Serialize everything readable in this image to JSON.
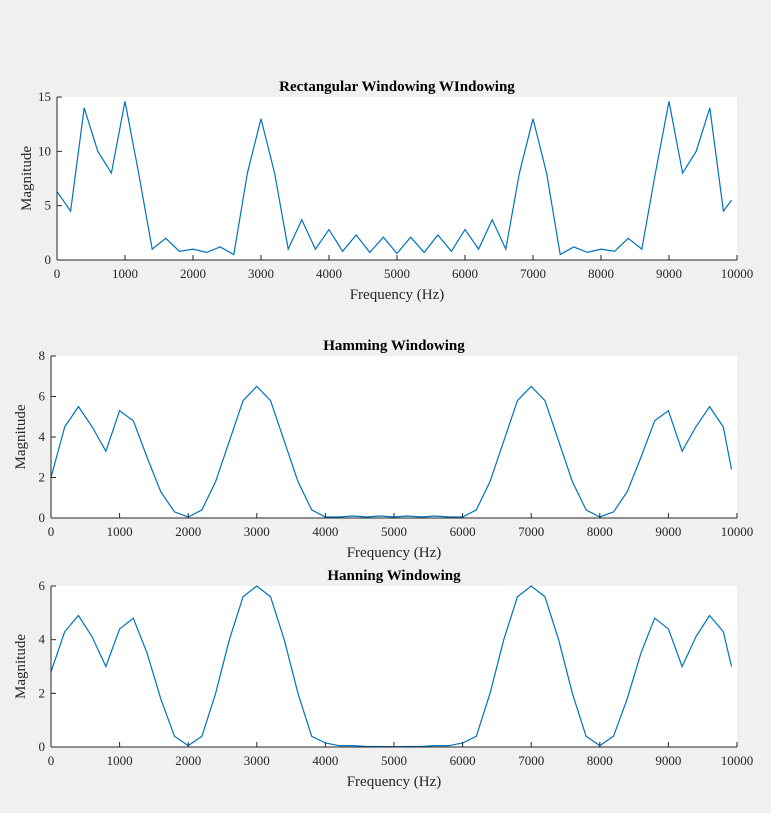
{
  "chart_data": [
    {
      "type": "line",
      "title": "Rectangular Windowing WIndowing",
      "x_label": "Frequency (Hz)",
      "y_label": "Magnitude",
      "x": [
        0,
        200,
        400,
        600,
        800,
        1000,
        1200,
        1400,
        1600,
        1800,
        2000,
        2200,
        2400,
        2600,
        2800,
        3000,
        3200,
        3400,
        3600,
        3800,
        4000,
        4200,
        4400,
        4600,
        4800,
        5000,
        5200,
        5400,
        5600,
        5800,
        6000,
        6200,
        6400,
        6600,
        6800,
        7000,
        7200,
        7400,
        7600,
        7800,
        8000,
        8200,
        8400,
        8600,
        8800,
        9000,
        9200,
        9400,
        9600,
        9800,
        9920
      ],
      "series": [
        {
          "name": "Rectangular",
          "color": "#0072bd",
          "values": [
            6.3,
            4.5,
            14,
            10,
            8,
            14.6,
            8,
            1,
            2,
            0.8,
            1,
            0.7,
            1.2,
            0.5,
            8,
            13,
            8,
            1,
            3.7,
            1,
            2.8,
            0.8,
            2.3,
            0.7,
            2.1,
            0.6,
            2.1,
            0.7,
            2.3,
            0.8,
            2.8,
            1,
            3.7,
            1,
            8,
            13,
            8,
            0.5,
            1.2,
            0.7,
            1,
            0.8,
            2,
            1,
            8,
            14.6,
            8,
            10,
            14,
            4.5,
            5.5
          ]
        }
      ],
      "xlim": [
        0,
        10000
      ],
      "xticks": [
        0,
        1000,
        2000,
        3000,
        4000,
        5000,
        6000,
        7000,
        8000,
        9000,
        10000
      ],
      "ylim": [
        0,
        15
      ],
      "yticks": [
        0,
        5,
        10,
        15
      ]
    },
    {
      "type": "line",
      "title": "Hamming Windowing",
      "x_label": "Frequency (Hz)",
      "y_label": "Magnitude",
      "x": [
        0,
        200,
        400,
        600,
        800,
        1000,
        1200,
        1400,
        1600,
        1800,
        2000,
        2200,
        2400,
        2600,
        2800,
        3000,
        3200,
        3400,
        3600,
        3800,
        4000,
        4200,
        4400,
        4600,
        4800,
        5000,
        5200,
        5400,
        5600,
        5800,
        6000,
        6200,
        6400,
        6600,
        6800,
        7000,
        7200,
        7400,
        7600,
        7800,
        8000,
        8200,
        8400,
        8600,
        8800,
        9000,
        9200,
        9400,
        9600,
        9800,
        9920
      ],
      "series": [
        {
          "name": "Hamming",
          "color": "#0072bd",
          "values": [
            2,
            4.5,
            5.5,
            4.5,
            3.3,
            5.3,
            4.8,
            3,
            1.3,
            0.3,
            0.05,
            0.4,
            1.8,
            3.8,
            5.8,
            6.5,
            5.8,
            3.8,
            1.8,
            0.4,
            0.05,
            0.05,
            0.1,
            0.05,
            0.1,
            0.05,
            0.1,
            0.05,
            0.1,
            0.05,
            0.05,
            0.4,
            1.8,
            3.8,
            5.8,
            6.5,
            5.8,
            3.8,
            1.8,
            0.4,
            0.05,
            0.3,
            1.3,
            3,
            4.8,
            5.3,
            3.3,
            4.5,
            5.5,
            4.5,
            2.4
          ]
        }
      ],
      "xlim": [
        0,
        10000
      ],
      "xticks": [
        0,
        1000,
        2000,
        3000,
        4000,
        5000,
        6000,
        7000,
        8000,
        9000,
        10000
      ],
      "ylim": [
        0,
        8
      ],
      "yticks": [
        0,
        2,
        4,
        6,
        8
      ]
    },
    {
      "type": "line",
      "title": "Hanning Windowing",
      "x_label": "Frequency (Hz)",
      "y_label": "Magnitude",
      "x": [
        0,
        200,
        400,
        600,
        800,
        1000,
        1200,
        1400,
        1600,
        1800,
        2000,
        2200,
        2400,
        2600,
        2800,
        3000,
        3200,
        3400,
        3600,
        3800,
        4000,
        4200,
        4400,
        4600,
        4800,
        5000,
        5200,
        5400,
        5600,
        5800,
        6000,
        6200,
        6400,
        6600,
        6800,
        7000,
        7200,
        7400,
        7600,
        7800,
        8000,
        8200,
        8400,
        8600,
        8800,
        9000,
        9200,
        9400,
        9600,
        9800,
        9920
      ],
      "series": [
        {
          "name": "Hanning",
          "color": "#0072bd",
          "values": [
            2.8,
            4.3,
            4.9,
            4.1,
            3,
            4.4,
            4.8,
            3.5,
            1.8,
            0.4,
            0.05,
            0.4,
            2,
            4,
            5.6,
            6,
            5.6,
            4,
            2,
            0.4,
            0.15,
            0.05,
            0.05,
            0.02,
            0.02,
            0.01,
            0.02,
            0.02,
            0.05,
            0.05,
            0.15,
            0.4,
            2,
            4,
            5.6,
            6,
            5.6,
            4,
            2,
            0.4,
            0.05,
            0.4,
            1.8,
            3.5,
            4.8,
            4.4,
            3,
            4.1,
            4.9,
            4.3,
            3
          ]
        }
      ],
      "xlim": [
        0,
        10000
      ],
      "xticks": [
        0,
        1000,
        2000,
        3000,
        4000,
        5000,
        6000,
        7000,
        8000,
        9000,
        10000
      ],
      "ylim": [
        0,
        6
      ],
      "yticks": [
        0,
        2,
        4,
        6
      ]
    }
  ]
}
